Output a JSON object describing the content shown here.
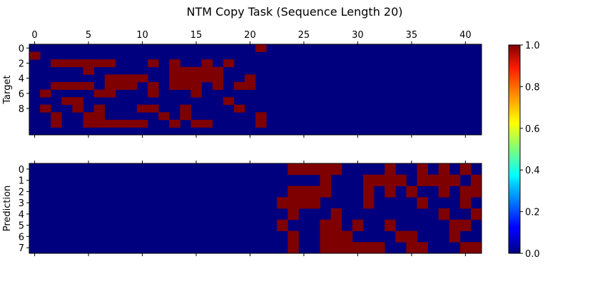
{
  "chart_data": {
    "type": "heatmap",
    "title": "NTM Copy Task (Sequence Length 20)",
    "colormap": "jet",
    "colors": {
      "low": "#00007f",
      "high": "#7f0000"
    },
    "colorbar": {
      "min": 0.0,
      "max": 1.0,
      "ticks": [
        "0.0",
        "0.2",
        "0.4",
        "0.6",
        "0.8",
        "1.0"
      ]
    },
    "x_ticks": [
      0,
      5,
      10,
      15,
      20,
      25,
      30,
      35,
      40
    ],
    "x_tick_labels": [
      "0",
      "5",
      "10",
      "15",
      "20",
      "25",
      "30",
      "35",
      "40"
    ],
    "panels": [
      {
        "ylabel": "Target",
        "y_ticks": [
          0,
          2,
          4,
          6,
          8
        ],
        "y_tick_labels": [
          "0",
          "2",
          "4",
          "6",
          "8"
        ],
        "x_tick_labels_shown": true,
        "rows": [
          "000000000000000000000100000000000000000000",
          "100000000000000000000000000000000000000000",
          "001111110001010010100000000000000000000000",
          "000001000000011111000000000000000000000000",
          "000000011110011111001000000000000000000000",
          "001111011101011101011000000000000000000000",
          "010000110001000100000000000000000000000000",
          "000110000000000000100000000000000000000000",
          "010010100011001000010000000000000000000000",
          "001001100000101000000100000000000000000000",
          "001001111110010110000100000000000000000000",
          "000000000000000000000000000000000000000000"
        ]
      },
      {
        "ylabel": "Prediction",
        "y_ticks": [
          0,
          1,
          2,
          3,
          4,
          5,
          6,
          7
        ],
        "y_tick_labels": [
          "0",
          "1",
          "2",
          "3",
          "4",
          "5",
          "6",
          "7"
        ],
        "x_tick_labels_shown": false,
        "rows": [
          "000000000000000000000000111110000100101010",
          "000000000000000000000000000100011110111101",
          "000000000000000000000000111100010101001011",
          "000000000000000000000001111000010000100010",
          "000000000000000000000000100010000000001001",
          "000000000000000000000001000110100100000110",
          "000000000000000000000000100111000011000100",
          "000000000000000000000000100111111001100011"
        ]
      }
    ]
  }
}
